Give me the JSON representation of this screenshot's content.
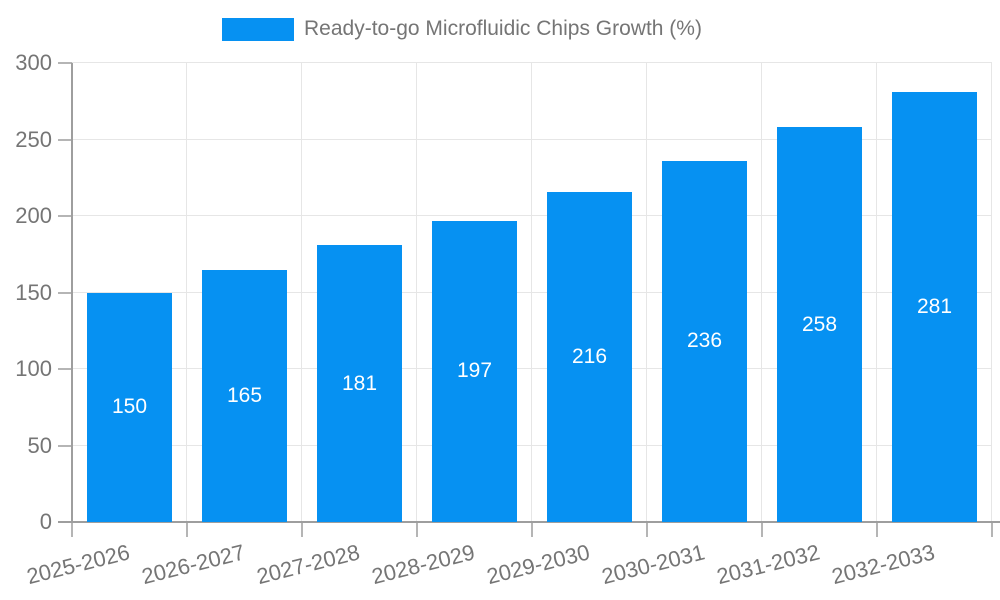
{
  "chart_data": {
    "type": "bar",
    "title": "Ready-to-go Microfluidic Chips Growth (%)",
    "categories": [
      "2025-2026",
      "2026-2027",
      "2027-2028",
      "2028-2029",
      "2029-2030",
      "2030-2031",
      "2031-2032",
      "2032-2033"
    ],
    "values": [
      150,
      165,
      181,
      197,
      216,
      236,
      258,
      281
    ],
    "xlabel": "",
    "ylabel": "",
    "ylim": [
      0,
      300
    ],
    "ytick_step": 50,
    "ytick_labels": [
      "0",
      "50",
      "100",
      "150",
      "200",
      "250",
      "300"
    ],
    "grid": true,
    "legend_position": "top",
    "bar_labels_position": "inside-center",
    "x_label_rotation_deg": -14,
    "colors": {
      "bar": "#0691f2",
      "bar_label": "#ffffff",
      "axis": "#9e9e9e",
      "tick": "#b5b5b5",
      "grid": "#e6e6e6",
      "text": "#757575"
    }
  }
}
